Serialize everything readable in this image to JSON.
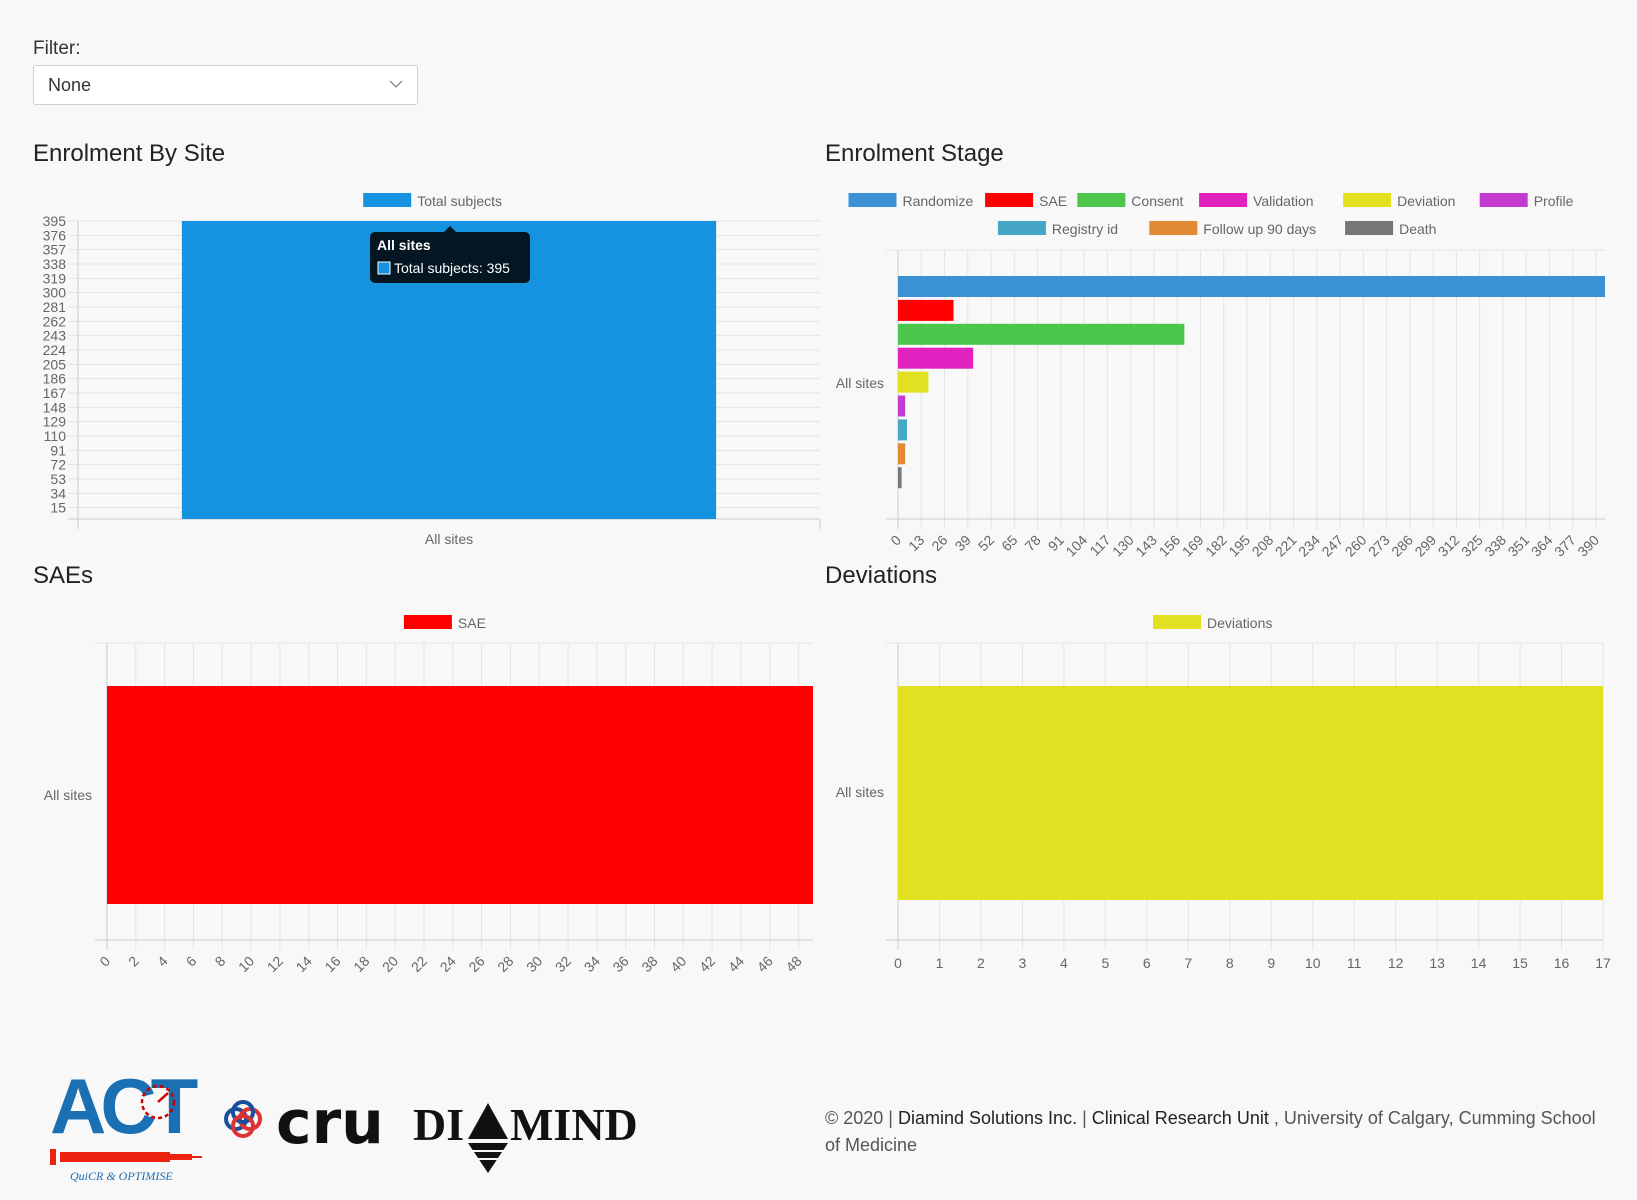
{
  "filter": {
    "label": "Filter:",
    "selected": "None"
  },
  "sections": {
    "enrolment_by_site": "Enrolment By Site",
    "enrolment_stage": "Enrolment Stage",
    "saes": "SAEs",
    "deviations": "Deviations"
  },
  "colors": {
    "total_subjects": "#1592e0",
    "randomize": "#3a91d3",
    "sae": "#ff0000",
    "consent": "#4bc84b",
    "validation": "#e022c1",
    "deviation": "#e1e122",
    "profile": "#c43bd0",
    "registry_id": "#45a7c5",
    "follow_up": "#e18a33",
    "death": "#777777"
  },
  "tooltip": {
    "title": "All sites",
    "body": "Total subjects: 395"
  },
  "chart_data": [
    {
      "id": "enrolment_by_site",
      "type": "bar",
      "categories": [
        "All sites"
      ],
      "series": [
        {
          "name": "Total subjects",
          "values": [
            395
          ]
        }
      ],
      "yticks": [
        15,
        34,
        53,
        72,
        91,
        110,
        129,
        148,
        167,
        186,
        205,
        224,
        243,
        262,
        281,
        300,
        319,
        338,
        357,
        376,
        395
      ],
      "ylim": [
        0,
        395
      ],
      "legend": "top"
    },
    {
      "id": "enrolment_stage",
      "type": "bar",
      "orientation": "horizontal",
      "categories": [
        "All sites"
      ],
      "series": [
        {
          "name": "Randomize",
          "values": [
            395
          ]
        },
        {
          "name": "SAE",
          "values": [
            31
          ]
        },
        {
          "name": "Consent",
          "values": [
            160
          ]
        },
        {
          "name": "Validation",
          "values": [
            42
          ]
        },
        {
          "name": "Deviation",
          "values": [
            17
          ]
        },
        {
          "name": "Profile",
          "values": [
            4
          ]
        },
        {
          "name": "Registry id",
          "values": [
            5
          ]
        },
        {
          "name": "Follow up 90 days",
          "values": [
            4
          ]
        },
        {
          "name": "Death",
          "values": [
            2
          ]
        }
      ],
      "xticks": [
        0,
        13,
        26,
        39,
        52,
        65,
        78,
        91,
        104,
        117,
        130,
        143,
        156,
        169,
        182,
        195,
        208,
        221,
        234,
        247,
        260,
        273,
        286,
        299,
        312,
        325,
        338,
        351,
        364,
        377,
        390
      ],
      "xlim": [
        0,
        395
      ],
      "legend": "top"
    },
    {
      "id": "saes",
      "type": "bar",
      "orientation": "horizontal",
      "categories": [
        "All sites"
      ],
      "series": [
        {
          "name": "SAE",
          "values": [
            49
          ]
        }
      ],
      "xticks": [
        0,
        2,
        4,
        6,
        8,
        10,
        12,
        14,
        16,
        18,
        20,
        22,
        24,
        26,
        28,
        30,
        32,
        34,
        36,
        38,
        40,
        42,
        44,
        46,
        48
      ],
      "xlim": [
        0,
        49
      ],
      "legend": "top"
    },
    {
      "id": "deviations",
      "type": "bar",
      "orientation": "horizontal",
      "categories": [
        "All sites"
      ],
      "series": [
        {
          "name": "Deviations",
          "values": [
            17
          ]
        }
      ],
      "xticks": [
        0,
        1,
        2,
        3,
        4,
        5,
        6,
        7,
        8,
        9,
        10,
        11,
        12,
        13,
        14,
        15,
        16,
        17
      ],
      "xlim": [
        0,
        17
      ],
      "legend": "top"
    }
  ],
  "logos": {
    "act": "ACT",
    "act_tagline": "QuiCR & OPTIMISE",
    "cru": "cru",
    "diamind_left": "DI",
    "diamind_right": "MIND"
  },
  "footer": {
    "copyright": "© 2020 | ",
    "company": "Diamind Solutions Inc.",
    "sep": " | ",
    "unit": "Clinical Research Unit",
    "rest": " , University of Calgary, Cumming School of Medicine"
  }
}
